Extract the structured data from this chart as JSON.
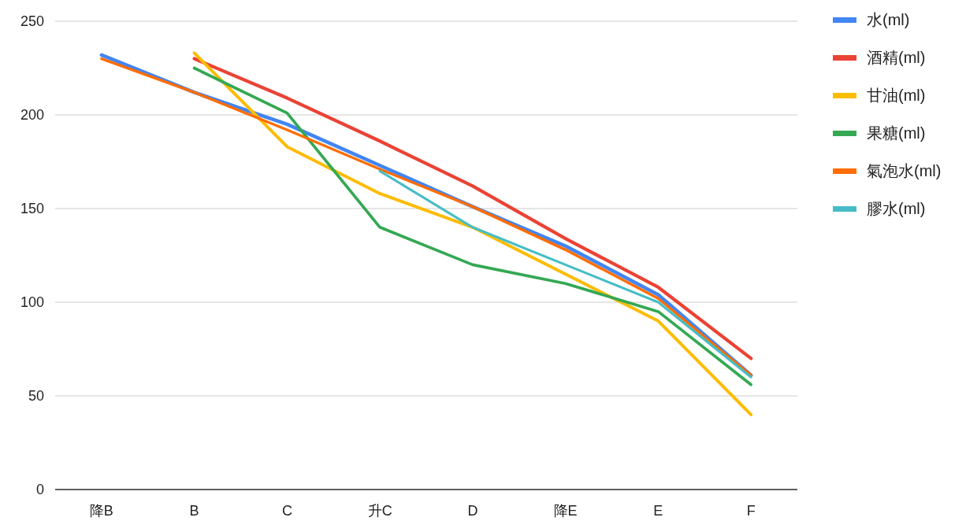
{
  "chart_data": {
    "type": "line",
    "categories": [
      "降B",
      "B",
      "C",
      "升C",
      "D",
      "降E",
      "E",
      "F"
    ],
    "series": [
      {
        "name": "水(ml)",
        "color": "#4285f4",
        "values": [
          232,
          212,
          195,
          173,
          151,
          130,
          104,
          61
        ]
      },
      {
        "name": "酒精(ml)",
        "color": "#ea4335",
        "values": [
          null,
          230,
          209,
          186,
          162,
          134,
          108,
          70
        ]
      },
      {
        "name": "甘油(ml)",
        "color": "#fbbc04",
        "values": [
          null,
          233,
          183,
          158,
          140,
          115,
          90,
          40
        ]
      },
      {
        "name": "果糖(ml)",
        "color": "#34a853",
        "values": [
          null,
          225,
          201,
          140,
          120,
          110,
          95,
          56
        ]
      },
      {
        "name": "氣泡水(ml)",
        "color": "#ff6d01",
        "values": [
          230,
          212,
          192,
          171,
          151,
          128,
          102,
          61
        ]
      },
      {
        "name": "膠水(ml)",
        "color": "#46bdc6",
        "values": [
          null,
          null,
          null,
          170,
          140,
          120,
          100,
          60
        ]
      }
    ],
    "ylim": [
      0,
      250
    ],
    "yticks": [
      0,
      50,
      100,
      150,
      200,
      250
    ],
    "grid": "y",
    "legend": "right"
  }
}
